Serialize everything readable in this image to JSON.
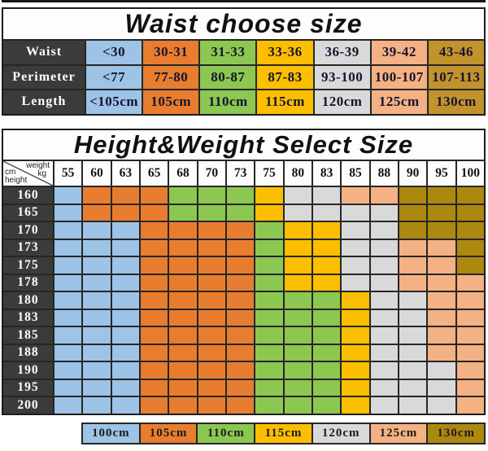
{
  "chart_data": [
    {
      "type": "table",
      "title": "Waist choose size",
      "row_labels": [
        "Waist",
        "Perimeter",
        "Length"
      ],
      "rows": [
        [
          "<30",
          "30-31",
          "31-33",
          "33-36",
          "36-39",
          "39-42",
          "43-46"
        ],
        [
          "<77",
          "77-80",
          "80-87",
          "87-83",
          "93-100",
          "100-107",
          "107-113"
        ],
        [
          "<105cm",
          "105cm",
          "110cm",
          "115cm",
          "120cm",
          "125cm",
          "130cm"
        ]
      ],
      "column_colors": [
        "blue",
        "orange",
        "green",
        "yellow",
        "gray",
        "peach",
        "gold_light"
      ]
    },
    {
      "type": "heatmap",
      "title": "Height&Weight Select Size",
      "corner": {
        "top_left": "cm",
        "top_right": "weight",
        "bottom_left": "height",
        "bottom_right": "kg"
      },
      "x_ticks": [
        "55",
        "60",
        "63",
        "65",
        "68",
        "70",
        "73",
        "75",
        "80",
        "83",
        "85",
        "88",
        "90",
        "95",
        "100"
      ],
      "y_ticks": [
        "160",
        "165",
        "170",
        "173",
        "175",
        "178",
        "180",
        "183",
        "185",
        "188",
        "190",
        "195",
        "200"
      ],
      "cells": [
        [
          "blue",
          "orange",
          "orange",
          "orange",
          "green",
          "green",
          "green",
          "yellow",
          "gray",
          "gray",
          "peach",
          "peach",
          "gold",
          "gold",
          "gold"
        ],
        [
          "blue",
          "orange",
          "orange",
          "orange",
          "green",
          "green",
          "green",
          "yellow",
          "gray",
          "gray",
          "gray",
          "gray",
          "gold",
          "gold",
          "gold"
        ],
        [
          "blue",
          "blue",
          "blue",
          "orange",
          "orange",
          "orange",
          "orange",
          "green",
          "yellow",
          "yellow",
          "gray",
          "gray",
          "gold",
          "gold",
          "gold"
        ],
        [
          "blue",
          "blue",
          "blue",
          "orange",
          "orange",
          "orange",
          "orange",
          "green",
          "yellow",
          "yellow",
          "gray",
          "gray",
          "peach",
          "peach",
          "gold"
        ],
        [
          "blue",
          "blue",
          "blue",
          "orange",
          "orange",
          "orange",
          "orange",
          "green",
          "yellow",
          "yellow",
          "gray",
          "gray",
          "peach",
          "peach",
          "gold"
        ],
        [
          "blue",
          "blue",
          "blue",
          "orange",
          "orange",
          "orange",
          "orange",
          "green",
          "yellow",
          "yellow",
          "gray",
          "gray",
          "peach",
          "peach",
          "peach"
        ],
        [
          "blue",
          "blue",
          "blue",
          "orange",
          "orange",
          "orange",
          "orange",
          "green",
          "green",
          "green",
          "yellow",
          "gray",
          "gray",
          "peach",
          "peach"
        ],
        [
          "blue",
          "blue",
          "blue",
          "orange",
          "orange",
          "orange",
          "orange",
          "green",
          "green",
          "green",
          "yellow",
          "gray",
          "gray",
          "peach",
          "peach"
        ],
        [
          "blue",
          "blue",
          "blue",
          "orange",
          "orange",
          "orange",
          "orange",
          "green",
          "green",
          "green",
          "yellow",
          "gray",
          "gray",
          "peach",
          "peach"
        ],
        [
          "blue",
          "blue",
          "blue",
          "orange",
          "orange",
          "orange",
          "orange",
          "green",
          "green",
          "green",
          "yellow",
          "gray",
          "gray",
          "peach",
          "peach"
        ],
        [
          "blue",
          "blue",
          "blue",
          "orange",
          "orange",
          "orange",
          "orange",
          "green",
          "green",
          "green",
          "yellow",
          "gray",
          "gray",
          "gray",
          "peach"
        ],
        [
          "blue",
          "blue",
          "blue",
          "orange",
          "orange",
          "orange",
          "orange",
          "green",
          "green",
          "green",
          "yellow",
          "gray",
          "gray",
          "gray",
          "peach"
        ],
        [
          "blue",
          "blue",
          "blue",
          "orange",
          "orange",
          "orange",
          "orange",
          "green",
          "green",
          "green",
          "yellow",
          "gray",
          "gray",
          "gray",
          "peach"
        ]
      ],
      "legend": [
        {
          "label": "100cm",
          "color": "blue"
        },
        {
          "label": "105cm",
          "color": "orange"
        },
        {
          "label": "110cm",
          "color": "green"
        },
        {
          "label": "115cm",
          "color": "yellow"
        },
        {
          "label": "120cm",
          "color": "gray"
        },
        {
          "label": "125cm",
          "color": "peach"
        },
        {
          "label": "130cm",
          "color": "gold"
        }
      ],
      "legend_position": "bottom",
      "grid": "on"
    }
  ],
  "colors": {
    "blue": "#9DC3E6",
    "orange": "#E97D2F",
    "green": "#8CC751",
    "yellow": "#FBBE00",
    "gray": "#D9D9D9",
    "peach": "#F4B183",
    "gold": "#AD880F",
    "gold_light": "#C2932D",
    "header_dark": "#3B3B3B"
  }
}
